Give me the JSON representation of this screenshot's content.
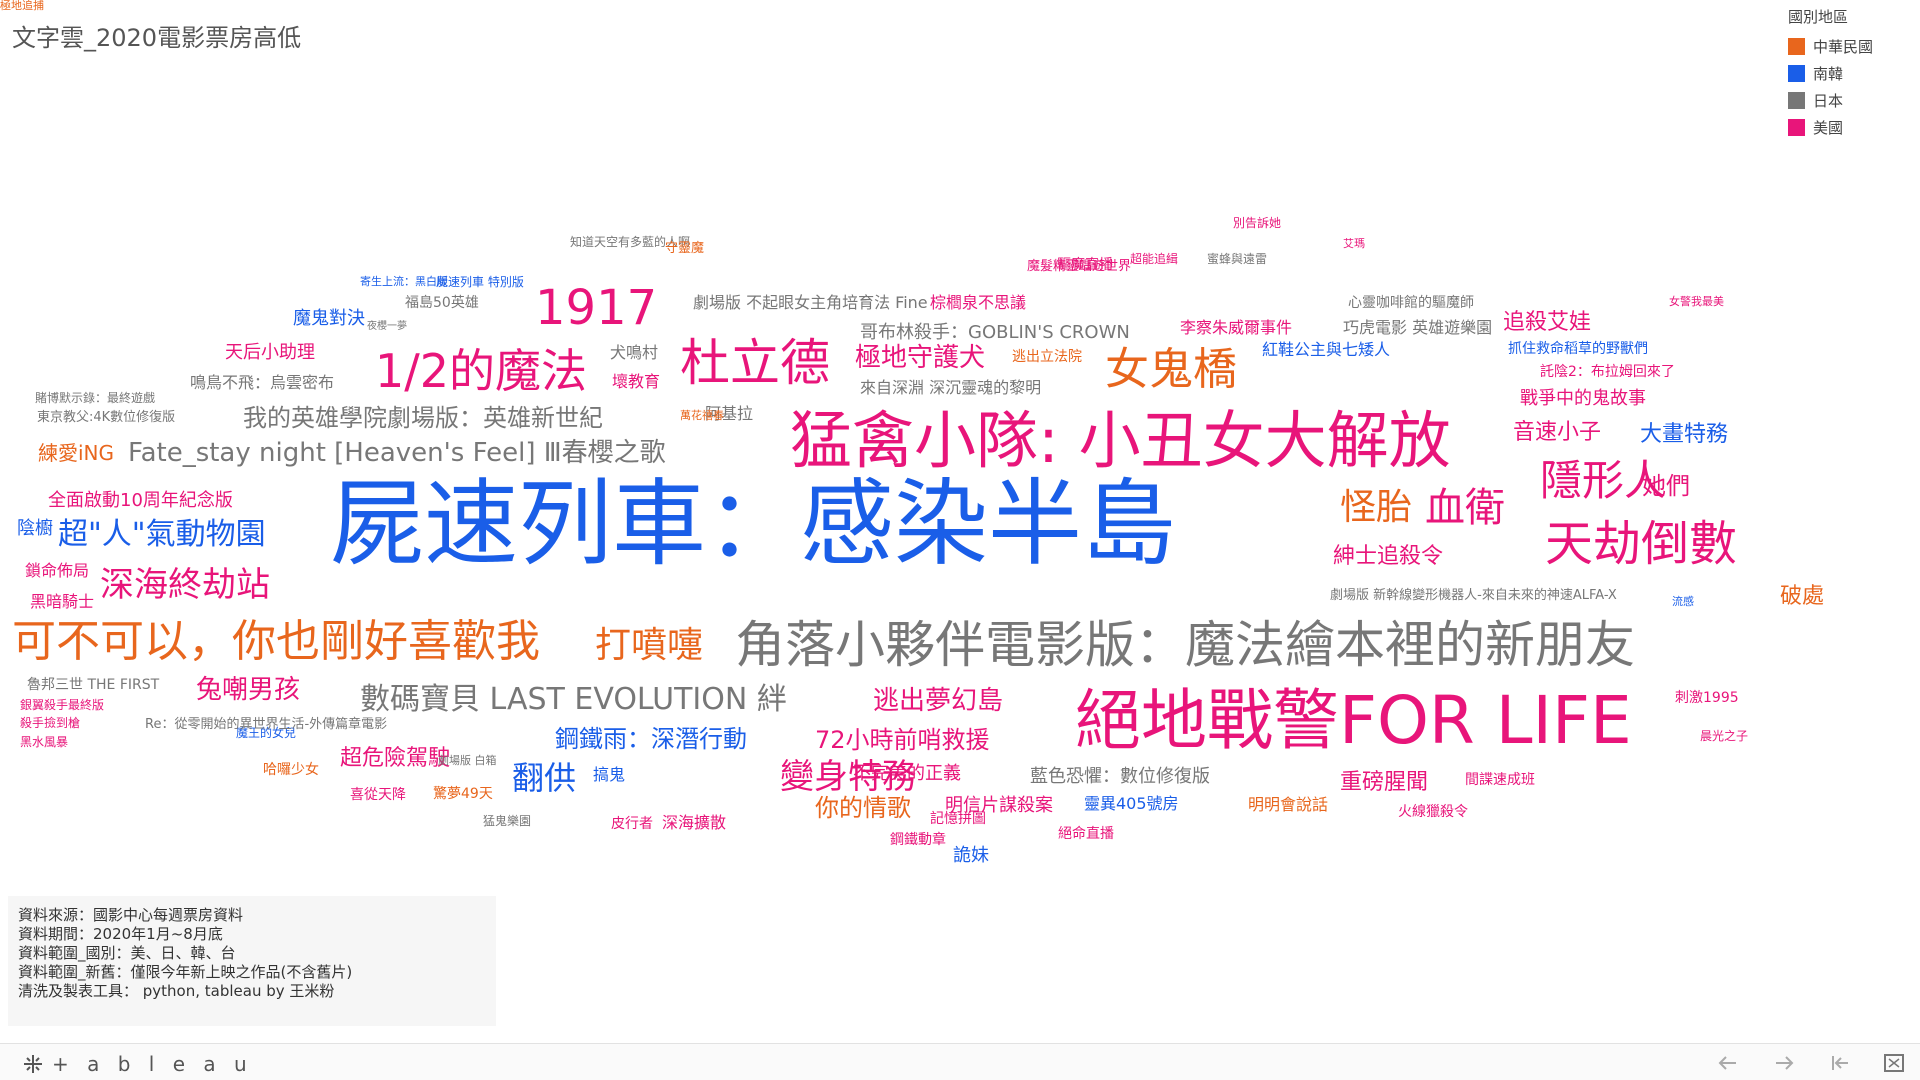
{
  "title": "文字雲_2020電影票房高低",
  "legend": {
    "title": "國別地區",
    "items": [
      {
        "label": "中華民國",
        "color": "#e8661d"
      },
      {
        "label": "南韓",
        "color": "#1a5ee8"
      },
      {
        "label": "日本",
        "color": "#777777"
      },
      {
        "label": "美國",
        "color": "#e8157a"
      }
    ]
  },
  "words": [
    {
      "t": "屍速列車：感染半島",
      "c": "南韓",
      "s": 94
    },
    {
      "t": "猛禽小隊: 小丑女大解放",
      "c": "美國",
      "s": 62
    },
    {
      "t": "絕地戰警FOR LIFE",
      "c": "美國",
      "s": 66
    },
    {
      "t": "角落小夥伴電影版：魔法繪本裡的新朋友",
      "c": "日本",
      "s": 50
    },
    {
      "t": "可不可以，你也剛好喜歡我",
      "c": "中華民國",
      "s": 44
    },
    {
      "t": "1/2的魔法",
      "c": "美國",
      "s": 46
    },
    {
      "t": "杜立德",
      "c": "美國",
      "s": 50
    },
    {
      "t": "1917",
      "c": "美國",
      "s": 48
    },
    {
      "t": "女鬼橋",
      "c": "中華民國",
      "s": 44
    },
    {
      "t": "天劫倒數",
      "c": "美國",
      "s": 48
    },
    {
      "t": "隱形人",
      "c": "美國",
      "s": 42
    },
    {
      "t": "血衛",
      "c": "美國",
      "s": 40
    },
    {
      "t": "怪胎",
      "c": "中華民國",
      "s": 36
    },
    {
      "t": "打噴嚏",
      "c": "中華民國",
      "s": 36
    },
    {
      "t": "變身特務",
      "c": "美國",
      "s": 34
    },
    {
      "t": "深海終劫站",
      "c": "美國",
      "s": 34
    },
    {
      "t": "超\"人\"氣動物園",
      "c": "南韓",
      "s": 30
    },
    {
      "t": "翻供",
      "c": "南韓",
      "s": 32
    },
    {
      "t": "數碼寶貝 LAST EVOLUTION 絆",
      "c": "日本",
      "s": 30
    },
    {
      "t": "Fate_stay night [Heaven's Feel] Ⅲ春櫻之歌",
      "c": "日本",
      "s": 26
    },
    {
      "t": "我的英雄學院劇場版：英雄新世紀",
      "c": "日本",
      "s": 24
    },
    {
      "t": "極地守護犬",
      "c": "美國",
      "s": 26
    },
    {
      "t": "逃出夢幻島",
      "c": "美國",
      "s": 26
    },
    {
      "t": "兔嘲男孩",
      "c": "美國",
      "s": 26
    },
    {
      "t": "你的情歌",
      "c": "中華民國",
      "s": 24
    },
    {
      "t": "72小時前哨救援",
      "c": "美國",
      "s": 24
    },
    {
      "t": "鋼鐵雨：深潛行動",
      "c": "南韓",
      "s": 24
    },
    {
      "t": "超危險駕駛",
      "c": "美國",
      "s": 22
    },
    {
      "t": "重磅腥聞",
      "c": "美國",
      "s": 22
    },
    {
      "t": "紳士追殺令",
      "c": "美國",
      "s": 22
    },
    {
      "t": "追殺艾娃",
      "c": "美國",
      "s": 22
    },
    {
      "t": "音速小子",
      "c": "美國",
      "s": 22
    },
    {
      "t": "大畫特務",
      "c": "南韓",
      "s": 22
    },
    {
      "t": "她們",
      "c": "美國",
      "s": 24
    },
    {
      "t": "破處",
      "c": "中華民國",
      "s": 22
    },
    {
      "t": "戰爭中的鬼故事",
      "c": "美國",
      "s": 18
    },
    {
      "t": "天后小助理",
      "c": "美國",
      "s": 18
    },
    {
      "t": "魔鬼對決",
      "c": "南韓",
      "s": 18
    },
    {
      "t": "練愛iNG",
      "c": "中華民國",
      "s": 20
    },
    {
      "t": "全面啟動10周年紀念版",
      "c": "美國",
      "s": 18
    },
    {
      "t": "陰櫥",
      "c": "南韓",
      "s": 18
    },
    {
      "t": "黑暗騎士",
      "c": "美國",
      "s": 16
    },
    {
      "t": "鎖命佈局",
      "c": "美國",
      "s": 16
    },
    {
      "t": "不完美的正義",
      "c": "美國",
      "s": 18
    },
    {
      "t": "明信片謀殺案",
      "c": "美國",
      "s": 18
    },
    {
      "t": "藍色恐懼：數位修復版",
      "c": "日本",
      "s": 18
    },
    {
      "t": "靈異405號房",
      "c": "南韓",
      "s": 16
    },
    {
      "t": "明明會說話",
      "c": "中華民國",
      "s": 16
    },
    {
      "t": "詭妹",
      "c": "南韓",
      "s": 18
    },
    {
      "t": "鋼鐵動章",
      "c": "美國",
      "s": 14
    },
    {
      "t": "記憶拼圖",
      "c": "美國",
      "s": 14
    },
    {
      "t": "絕命直播",
      "c": "美國",
      "s": 14
    },
    {
      "t": "皮行者",
      "c": "美國",
      "s": 14
    },
    {
      "t": "深海擴散",
      "c": "美國",
      "s": 16
    },
    {
      "t": "喜從天降",
      "c": "美國",
      "s": 14
    },
    {
      "t": "驚夢49天",
      "c": "中華民國",
      "s": 14
    },
    {
      "t": "哈囉少女",
      "c": "中華民國",
      "s": 14
    },
    {
      "t": "搞鬼",
      "c": "南韓",
      "s": 16
    },
    {
      "t": "刺激1995",
      "c": "美國",
      "s": 14
    },
    {
      "t": "間諜速成班",
      "c": "美國",
      "s": 14
    },
    {
      "t": "火線獵殺令",
      "c": "美國",
      "s": 14
    },
    {
      "t": "紅鞋公主與七矮人",
      "c": "南韓",
      "s": 16
    },
    {
      "t": "李察朱威爾事件",
      "c": "美國",
      "s": 16
    },
    {
      "t": "哥布林殺手：GOBLIN'S CROWN",
      "c": "日本",
      "s": 18
    },
    {
      "t": "劇場版 不起眼女主角培育法 Fine",
      "c": "日本",
      "s": 16
    },
    {
      "t": "棕櫚泉不思議",
      "c": "美國",
      "s": 16
    },
    {
      "t": "來自深淵 深沉靈魂的黎明",
      "c": "日本",
      "s": 16
    },
    {
      "t": "逃出立法院",
      "c": "中華民國",
      "s": 14
    },
    {
      "t": "抓住救命稻草的野獸們",
      "c": "南韓",
      "s": 14
    },
    {
      "t": "託陰2：布拉姆回來了",
      "c": "美國",
      "s": 14
    },
    {
      "t": "巧虎電影 英雄遊樂園",
      "c": "日本",
      "s": 16
    },
    {
      "t": "心靈咖啡館的驅魔師",
      "c": "日本",
      "s": 14
    },
    {
      "t": "鳴鳥不飛：烏雲密布",
      "c": "日本",
      "s": 16
    },
    {
      "t": "福島50英雄",
      "c": "日本",
      "s": 14
    },
    {
      "t": "犬鳴村",
      "c": "日本",
      "s": 16
    },
    {
      "t": "壞教育",
      "c": "美國",
      "s": 16
    },
    {
      "t": "阿基拉",
      "c": "日本",
      "s": 16
    },
    {
      "t": "魔髮精靈唱遊世界",
      "c": "美國",
      "s": 13
    },
    {
      "t": "驅魔直播",
      "c": "美國",
      "s": 14
    },
    {
      "t": "東京教父:4K數位修復版",
      "c": "日本",
      "s": 13
    },
    {
      "t": "劇場版 新幹線變形機器人-來自未來的神速ALFA-X",
      "c": "日本",
      "s": 13
    },
    {
      "t": "魯邦三世 THE FIRST",
      "c": "日本",
      "s": 14
    },
    {
      "t": "銀翼殺手最終版",
      "c": "美國",
      "s": 12
    },
    {
      "t": "殺手撿到槍",
      "c": "美國",
      "s": 12
    },
    {
      "t": "黑水風暴",
      "c": "美國",
      "s": 12
    },
    {
      "t": "魔王的女兒",
      "c": "南韓",
      "s": 12
    },
    {
      "t": "Re：從零開始的異世界生活-外傳篇章電影",
      "c": "日本",
      "s": 13
    },
    {
      "t": "晨光之子",
      "c": "美國",
      "s": 12
    },
    {
      "t": "猛鬼樂園",
      "c": "日本",
      "s": 12
    },
    {
      "t": "屍速列車 特別版",
      "c": "南韓",
      "s": 12
    },
    {
      "t": "寄生上流：黑白版",
      "c": "南韓",
      "s": 11
    },
    {
      "t": "劇場版 白箱",
      "c": "日本",
      "s": 11
    },
    {
      "t": "夜櫻一夢",
      "c": "日本",
      "s": 10
    },
    {
      "t": "賭博默示錄：最終遊戲",
      "c": "日本",
      "s": 12
    },
    {
      "t": "知道天空有多藍的人啊",
      "c": "日本",
      "s": 12
    },
    {
      "t": "守靈魔",
      "c": "中華民國",
      "s": 13
    },
    {
      "t": "超能追緝",
      "c": "美國",
      "s": 12
    },
    {
      "t": "蜜蜂與遠雷",
      "c": "日本",
      "s": 12
    },
    {
      "t": "別告訴她",
      "c": "美國",
      "s": 12
    },
    {
      "t": "艾瑪",
      "c": "美國",
      "s": 11
    },
    {
      "t": "女警我最美",
      "c": "美國",
      "s": 11
    },
    {
      "t": "萬花禧春",
      "c": "中華民國",
      "s": 11
    },
    {
      "t": "流感",
      "c": "南韓",
      "s": 11
    },
    {
      "t": "極地追捕",
      "c": "中華民國",
      "s": 11
    }
  ],
  "info": {
    "lines": [
      "資料來源：國影中心每週票房資料",
      "資料期間：2020年1月~8月底",
      "資料範圍_國別：美、日、韓、台",
      "資料範圍_新舊：僅限今年新上映之作品(不含舊片)",
      "清洗及製表工具： python, tableau by 王米粉"
    ]
  },
  "footer": {
    "logo_text": "+ a b l e a u",
    "controls": [
      "undo-icon",
      "redo-icon",
      "revert-icon",
      "fullscreen-icon"
    ]
  }
}
